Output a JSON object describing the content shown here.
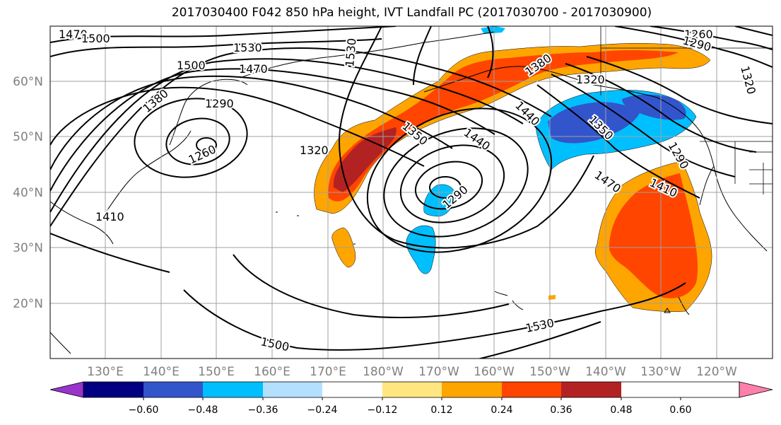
{
  "title": "2017030400 F042 850 hPa height, IVT Landfall PC (2017030700 - 2017030900)",
  "map": {
    "lat_labels": [
      "60°N",
      "50°N",
      "40°N",
      "30°N",
      "20°N"
    ],
    "lon_labels": [
      "130°E",
      "140°E",
      "150°E",
      "160°E",
      "170°E",
      "180°W",
      "170°W",
      "160°W",
      "150°W",
      "140°W",
      "130°W",
      "120°W"
    ],
    "contour_labels": [
      "1470",
      "1500",
      "1530",
      "1530",
      "1500",
      "1470",
      "1290",
      "1380",
      "1260",
      "1320",
      "1350",
      "1440",
      "1290",
      "1380",
      "1320",
      "1440",
      "1350",
      "1290",
      "1260",
      "1290",
      "1320",
      "1470",
      "1410",
      "1410",
      "1530",
      "1500"
    ]
  },
  "colorbar": {
    "ticks": [
      "−0.60",
      "−0.48",
      "−0.36",
      "−0.24",
      "−0.12",
      "0.12",
      "0.24",
      "0.36",
      "0.48",
      "0.60"
    ],
    "colors": [
      "#9933cc",
      "#000080",
      "#3355cc",
      "#00bfff",
      "#b3e0ff",
      "#ffffff",
      "#ffe680",
      "#ffa500",
      "#ff4500",
      "#b22222",
      "#ff80aa"
    ]
  }
}
